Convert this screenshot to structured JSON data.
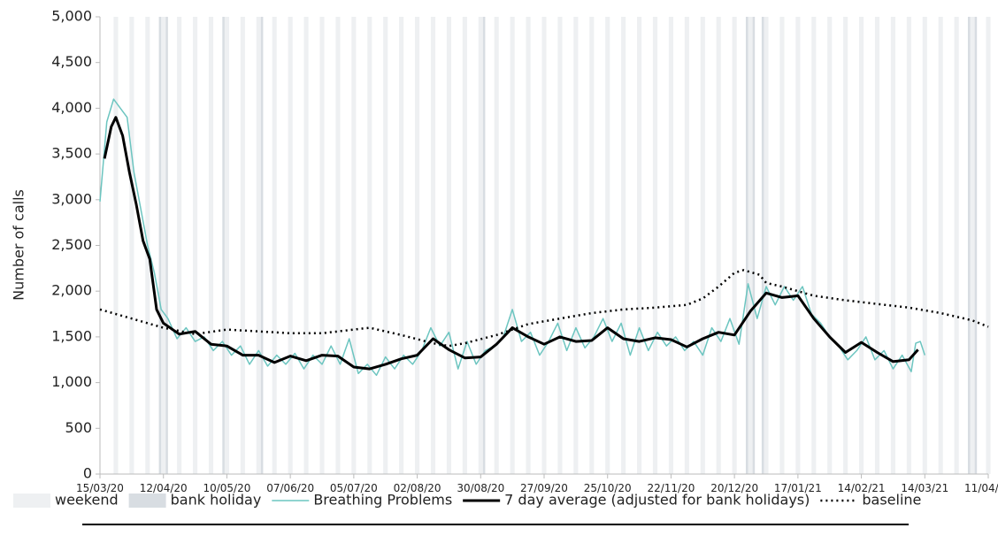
{
  "chart_data": {
    "type": "line",
    "y_label": "Number of calls",
    "xlim": [
      "15/03/20",
      "11/04/21"
    ],
    "xticks": [
      "15/03/20",
      "12/04/20",
      "10/05/20",
      "07/06/20",
      "05/07/20",
      "02/08/20",
      "30/08/20",
      "27/09/20",
      "25/10/20",
      "22/11/20",
      "20/12/20",
      "17/01/21",
      "14/02/21",
      "14/03/21",
      "11/04/21"
    ],
    "ylim": [
      0,
      5000
    ],
    "yticks": [
      0,
      500,
      {
        "value": 1000,
        "label": "1,000"
      },
      {
        "value": 1500,
        "label": "1,500"
      },
      {
        "value": 2000,
        "label": "2,000"
      },
      {
        "value": 2500,
        "label": "2,500"
      },
      {
        "value": 3000,
        "label": "3,000"
      },
      {
        "value": 3500,
        "label": "3,500"
      },
      {
        "value": 4000,
        "label": "4,000"
      },
      {
        "value": 4500,
        "label": "4,500"
      },
      {
        "value": 5000,
        "label": "5,000"
      }
    ],
    "shading": [
      {
        "name": "weekend",
        "color": "#eef0f2"
      },
      {
        "name": "bank holiday",
        "color": "#d8dde2",
        "dates": [
          "10/04/20",
          "13/04/20",
          "08/05/20",
          "25/05/20",
          "31/08/20",
          "25/12/20",
          "28/12/20",
          "01/01/21",
          "02/04/21",
          "05/04/21"
        ]
      }
    ],
    "series": [
      {
        "name": "Breathing Problems",
        "color": "#6cc5c0",
        "style": "solid",
        "width": 1.5,
        "x": [
          "15/03/20",
          "18/03/20",
          "21/03/20",
          "24/03/20",
          "27/03/20",
          "30/03/20",
          "02/04/20",
          "05/04/20",
          "08/04/20",
          "11/04/20",
          "14/04/20",
          "18/04/20",
          "22/04/20",
          "26/04/20",
          "30/04/20",
          "04/05/20",
          "08/05/20",
          "12/05/20",
          "16/05/20",
          "20/05/20",
          "24/05/20",
          "28/05/20",
          "01/06/20",
          "05/06/20",
          "09/06/20",
          "13/06/20",
          "17/06/20",
          "21/06/20",
          "25/06/20",
          "29/06/20",
          "03/07/20",
          "07/07/20",
          "11/07/20",
          "15/07/20",
          "19/07/20",
          "23/07/20",
          "27/07/20",
          "31/07/20",
          "04/08/20",
          "08/08/20",
          "12/08/20",
          "16/08/20",
          "20/08/20",
          "24/08/20",
          "28/08/20",
          "01/09/20",
          "05/09/20",
          "09/09/20",
          "13/09/20",
          "17/09/20",
          "21/09/20",
          "25/09/20",
          "29/09/20",
          "03/10/20",
          "07/10/20",
          "11/10/20",
          "15/10/20",
          "19/10/20",
          "23/10/20",
          "27/10/20",
          "31/10/20",
          "04/11/20",
          "08/11/20",
          "12/11/20",
          "16/11/20",
          "20/11/20",
          "24/11/20",
          "28/11/20",
          "02/12/20",
          "06/12/20",
          "10/12/20",
          "14/12/20",
          "18/12/20",
          "22/12/20",
          "26/12/20",
          "30/12/20",
          "03/01/21",
          "07/01/21",
          "11/01/21",
          "15/01/21",
          "19/01/21",
          "23/01/21",
          "27/01/21",
          "31/01/21",
          "04/02/21",
          "08/02/21",
          "12/02/21",
          "16/02/21",
          "20/02/21",
          "24/02/21",
          "28/02/21",
          "04/03/21",
          "08/03/21",
          "10/03/21",
          "12/03/21",
          "14/03/21"
        ],
        "values": [
          2980,
          3850,
          4100,
          4000,
          3900,
          3300,
          2900,
          2500,
          2200,
          1800,
          1700,
          1480,
          1600,
          1450,
          1500,
          1350,
          1450,
          1300,
          1400,
          1200,
          1350,
          1180,
          1300,
          1200,
          1320,
          1150,
          1300,
          1200,
          1400,
          1200,
          1480,
          1100,
          1200,
          1080,
          1280,
          1150,
          1300,
          1200,
          1350,
          1600,
          1400,
          1550,
          1150,
          1450,
          1200,
          1350,
          1400,
          1500,
          1800,
          1450,
          1550,
          1300,
          1450,
          1650,
          1350,
          1600,
          1380,
          1500,
          1700,
          1450,
          1650,
          1300,
          1600,
          1350,
          1550,
          1400,
          1500,
          1350,
          1450,
          1300,
          1600,
          1450,
          1700,
          1420,
          2080,
          1700,
          2050,
          1850,
          2050,
          1900,
          2050,
          1750,
          1650,
          1500,
          1400,
          1250,
          1350,
          1500,
          1250,
          1350,
          1150,
          1300,
          1120,
          1430,
          1450,
          1300
        ]
      },
      {
        "name": "7 day average (adjusted for bank holidays)",
        "color": "#000000",
        "style": "solid",
        "width": 3,
        "x": [
          "17/03/20",
          "20/03/20",
          "22/03/20",
          "25/03/20",
          "28/03/20",
          "31/03/20",
          "03/04/20",
          "06/04/20",
          "09/04/20",
          "12/04/20",
          "19/04/20",
          "26/04/20",
          "03/05/20",
          "10/05/20",
          "17/05/20",
          "24/05/20",
          "31/05/20",
          "07/06/20",
          "14/06/20",
          "21/06/20",
          "28/06/20",
          "05/07/20",
          "12/07/20",
          "19/07/20",
          "26/07/20",
          "02/08/20",
          "09/08/20",
          "16/08/20",
          "23/08/20",
          "30/08/20",
          "06/09/20",
          "13/09/20",
          "20/09/20",
          "27/09/20",
          "04/10/20",
          "11/10/20",
          "18/10/20",
          "25/10/20",
          "01/11/20",
          "08/11/20",
          "15/11/20",
          "22/11/20",
          "29/11/20",
          "06/12/20",
          "13/12/20",
          "20/12/20",
          "27/12/20",
          "03/01/21",
          "10/01/21",
          "17/01/21",
          "24/01/21",
          "31/01/21",
          "07/02/21",
          "14/02/21",
          "21/02/21",
          "28/02/21",
          "07/03/21",
          "11/03/21"
        ],
        "values": [
          3450,
          3800,
          3900,
          3700,
          3300,
          2950,
          2550,
          2350,
          1800,
          1650,
          1530,
          1560,
          1420,
          1400,
          1300,
          1300,
          1220,
          1290,
          1240,
          1300,
          1290,
          1170,
          1150,
          1200,
          1260,
          1300,
          1480,
          1360,
          1270,
          1280,
          1420,
          1600,
          1500,
          1420,
          1500,
          1450,
          1460,
          1600,
          1480,
          1450,
          1490,
          1470,
          1390,
          1480,
          1550,
          1520,
          1780,
          1980,
          1930,
          1950,
          1700,
          1500,
          1330,
          1440,
          1330,
          1230,
          1250,
          1360
        ]
      },
      {
        "name": "baseline",
        "color": "#000000",
        "style": "dotted",
        "width": 2.5,
        "x": [
          "15/03/20",
          "29/03/20",
          "12/04/20",
          "26/04/20",
          "10/05/20",
          "24/05/20",
          "07/06/20",
          "21/06/20",
          "05/07/20",
          "12/07/20",
          "26/07/20",
          "09/08/20",
          "16/08/20",
          "23/08/20",
          "06/09/20",
          "20/09/20",
          "04/10/20",
          "18/10/20",
          "01/11/20",
          "15/11/20",
          "29/11/20",
          "06/12/20",
          "13/12/20",
          "20/12/20",
          "24/12/20",
          "31/12/20",
          "03/01/21",
          "10/01/21",
          "24/01/21",
          "07/02/21",
          "21/02/21",
          "07/03/21",
          "21/03/21",
          "04/04/21",
          "11/04/21"
        ],
        "values": [
          1800,
          1700,
          1600,
          1530,
          1580,
          1560,
          1540,
          1540,
          1580,
          1600,
          1520,
          1430,
          1400,
          1430,
          1520,
          1640,
          1700,
          1760,
          1800,
          1820,
          1850,
          1920,
          2050,
          2200,
          2230,
          2180,
          2090,
          2050,
          1950,
          1900,
          1860,
          1820,
          1760,
          1680,
          1610
        ]
      }
    ]
  }
}
